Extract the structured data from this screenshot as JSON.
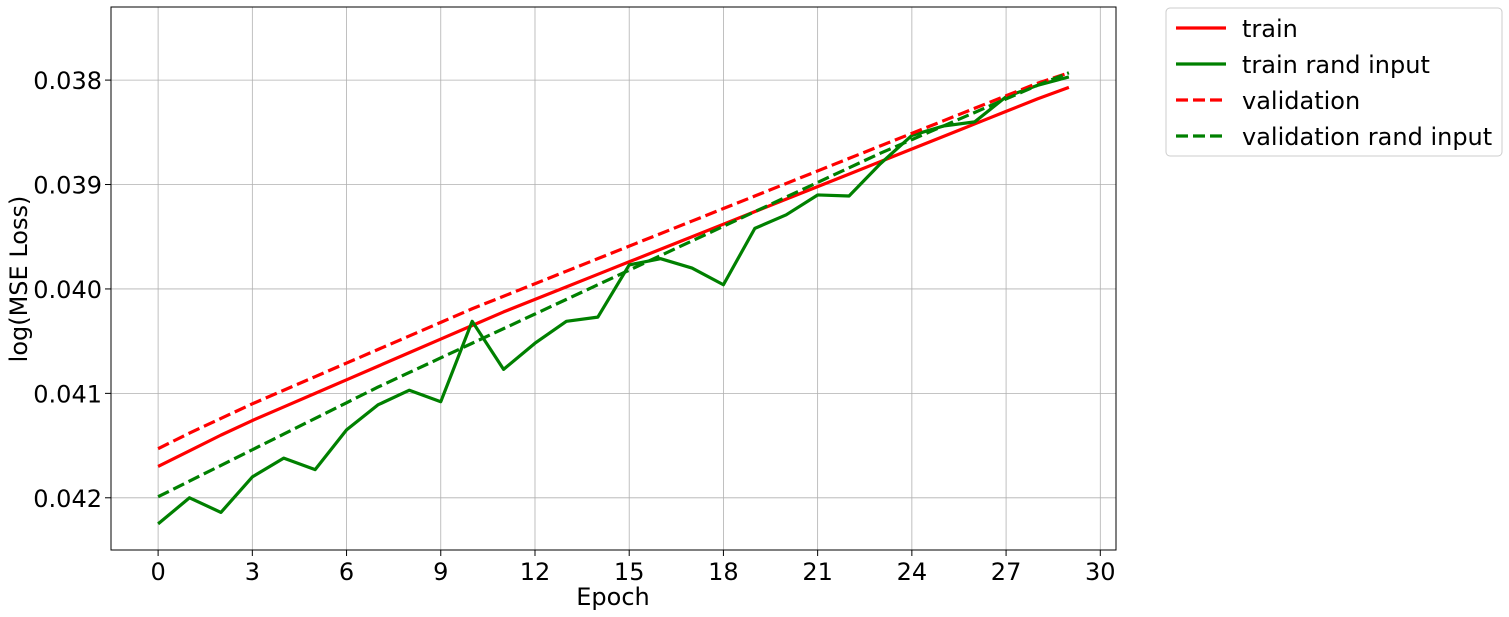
{
  "chart_data": {
    "type": "line",
    "xlabel": "Epoch",
    "ylabel": "log(MSE Loss)",
    "xlim": [
      -1.5,
      30.5
    ],
    "ylim": [
      0.0425,
      0.0373
    ],
    "y_inverted": true,
    "grid": true,
    "legend_placement": "outside-top-right",
    "x_ticks": [
      0,
      3,
      6,
      9,
      12,
      15,
      18,
      21,
      24,
      27,
      30
    ],
    "x_tick_labels": [
      "0",
      "3",
      "6",
      "9",
      "12",
      "15",
      "18",
      "21",
      "24",
      "27",
      "30"
    ],
    "y_ticks": [
      0.038,
      0.039,
      0.04,
      0.041,
      0.042
    ],
    "y_tick_labels": [
      "0.038",
      "0.039",
      "0.040",
      "0.041",
      "0.042"
    ],
    "x": [
      0,
      1,
      2,
      3,
      4,
      5,
      6,
      7,
      8,
      9,
      10,
      11,
      12,
      13,
      14,
      15,
      16,
      17,
      18,
      19,
      20,
      21,
      22,
      23,
      24,
      25,
      26,
      27,
      28,
      29
    ],
    "series": [
      {
        "name": "train",
        "color": "#ff0000",
        "style": "solid",
        "values": [
          0.0417,
          0.04155,
          0.0414,
          0.04126,
          0.04113,
          0.041,
          0.04087,
          0.04074,
          0.04061,
          0.04048,
          0.04035,
          0.04022,
          0.0401,
          0.03998,
          0.03986,
          0.03974,
          0.03962,
          0.0395,
          0.03938,
          0.03926,
          0.03914,
          0.03902,
          0.0389,
          0.03878,
          0.03866,
          0.03854,
          0.03842,
          0.0383,
          0.03818,
          0.03807
        ]
      },
      {
        "name": "train rand input",
        "color": "#008000",
        "style": "solid",
        "values": [
          0.04225,
          0.042,
          0.04214,
          0.0418,
          0.04162,
          0.04173,
          0.04135,
          0.04111,
          0.04097,
          0.04108,
          0.04031,
          0.04077,
          0.04052,
          0.04031,
          0.04027,
          0.03977,
          0.03971,
          0.0398,
          0.03996,
          0.03942,
          0.03929,
          0.0391,
          0.03911,
          0.0388,
          0.03853,
          0.03844,
          0.0384,
          0.03816,
          0.03805,
          0.03797
        ]
      },
      {
        "name": "validation",
        "color": "#ff0000",
        "style": "dashed",
        "values": [
          0.04153,
          0.04138,
          0.04124,
          0.0411,
          0.04097,
          0.04084,
          0.04071,
          0.04058,
          0.04045,
          0.04032,
          0.04019,
          0.04007,
          0.03995,
          0.03983,
          0.03971,
          0.03959,
          0.03947,
          0.03935,
          0.03923,
          0.03911,
          0.03899,
          0.03887,
          0.03875,
          0.03863,
          0.03851,
          0.03839,
          0.03827,
          0.03815,
          0.03803,
          0.03793
        ]
      },
      {
        "name": "validation rand input",
        "color": "#008000",
        "style": "dashed",
        "values": [
          0.04199,
          0.04184,
          0.04169,
          0.04154,
          0.04139,
          0.04124,
          0.04109,
          0.04094,
          0.0408,
          0.04066,
          0.04052,
          0.04038,
          0.04024,
          0.0401,
          0.03996,
          0.03982,
          0.03968,
          0.03954,
          0.0394,
          0.03926,
          0.03912,
          0.03898,
          0.03884,
          0.0387,
          0.03857,
          0.03844,
          0.03831,
          0.03818,
          0.03805,
          0.03793
        ]
      }
    ]
  }
}
